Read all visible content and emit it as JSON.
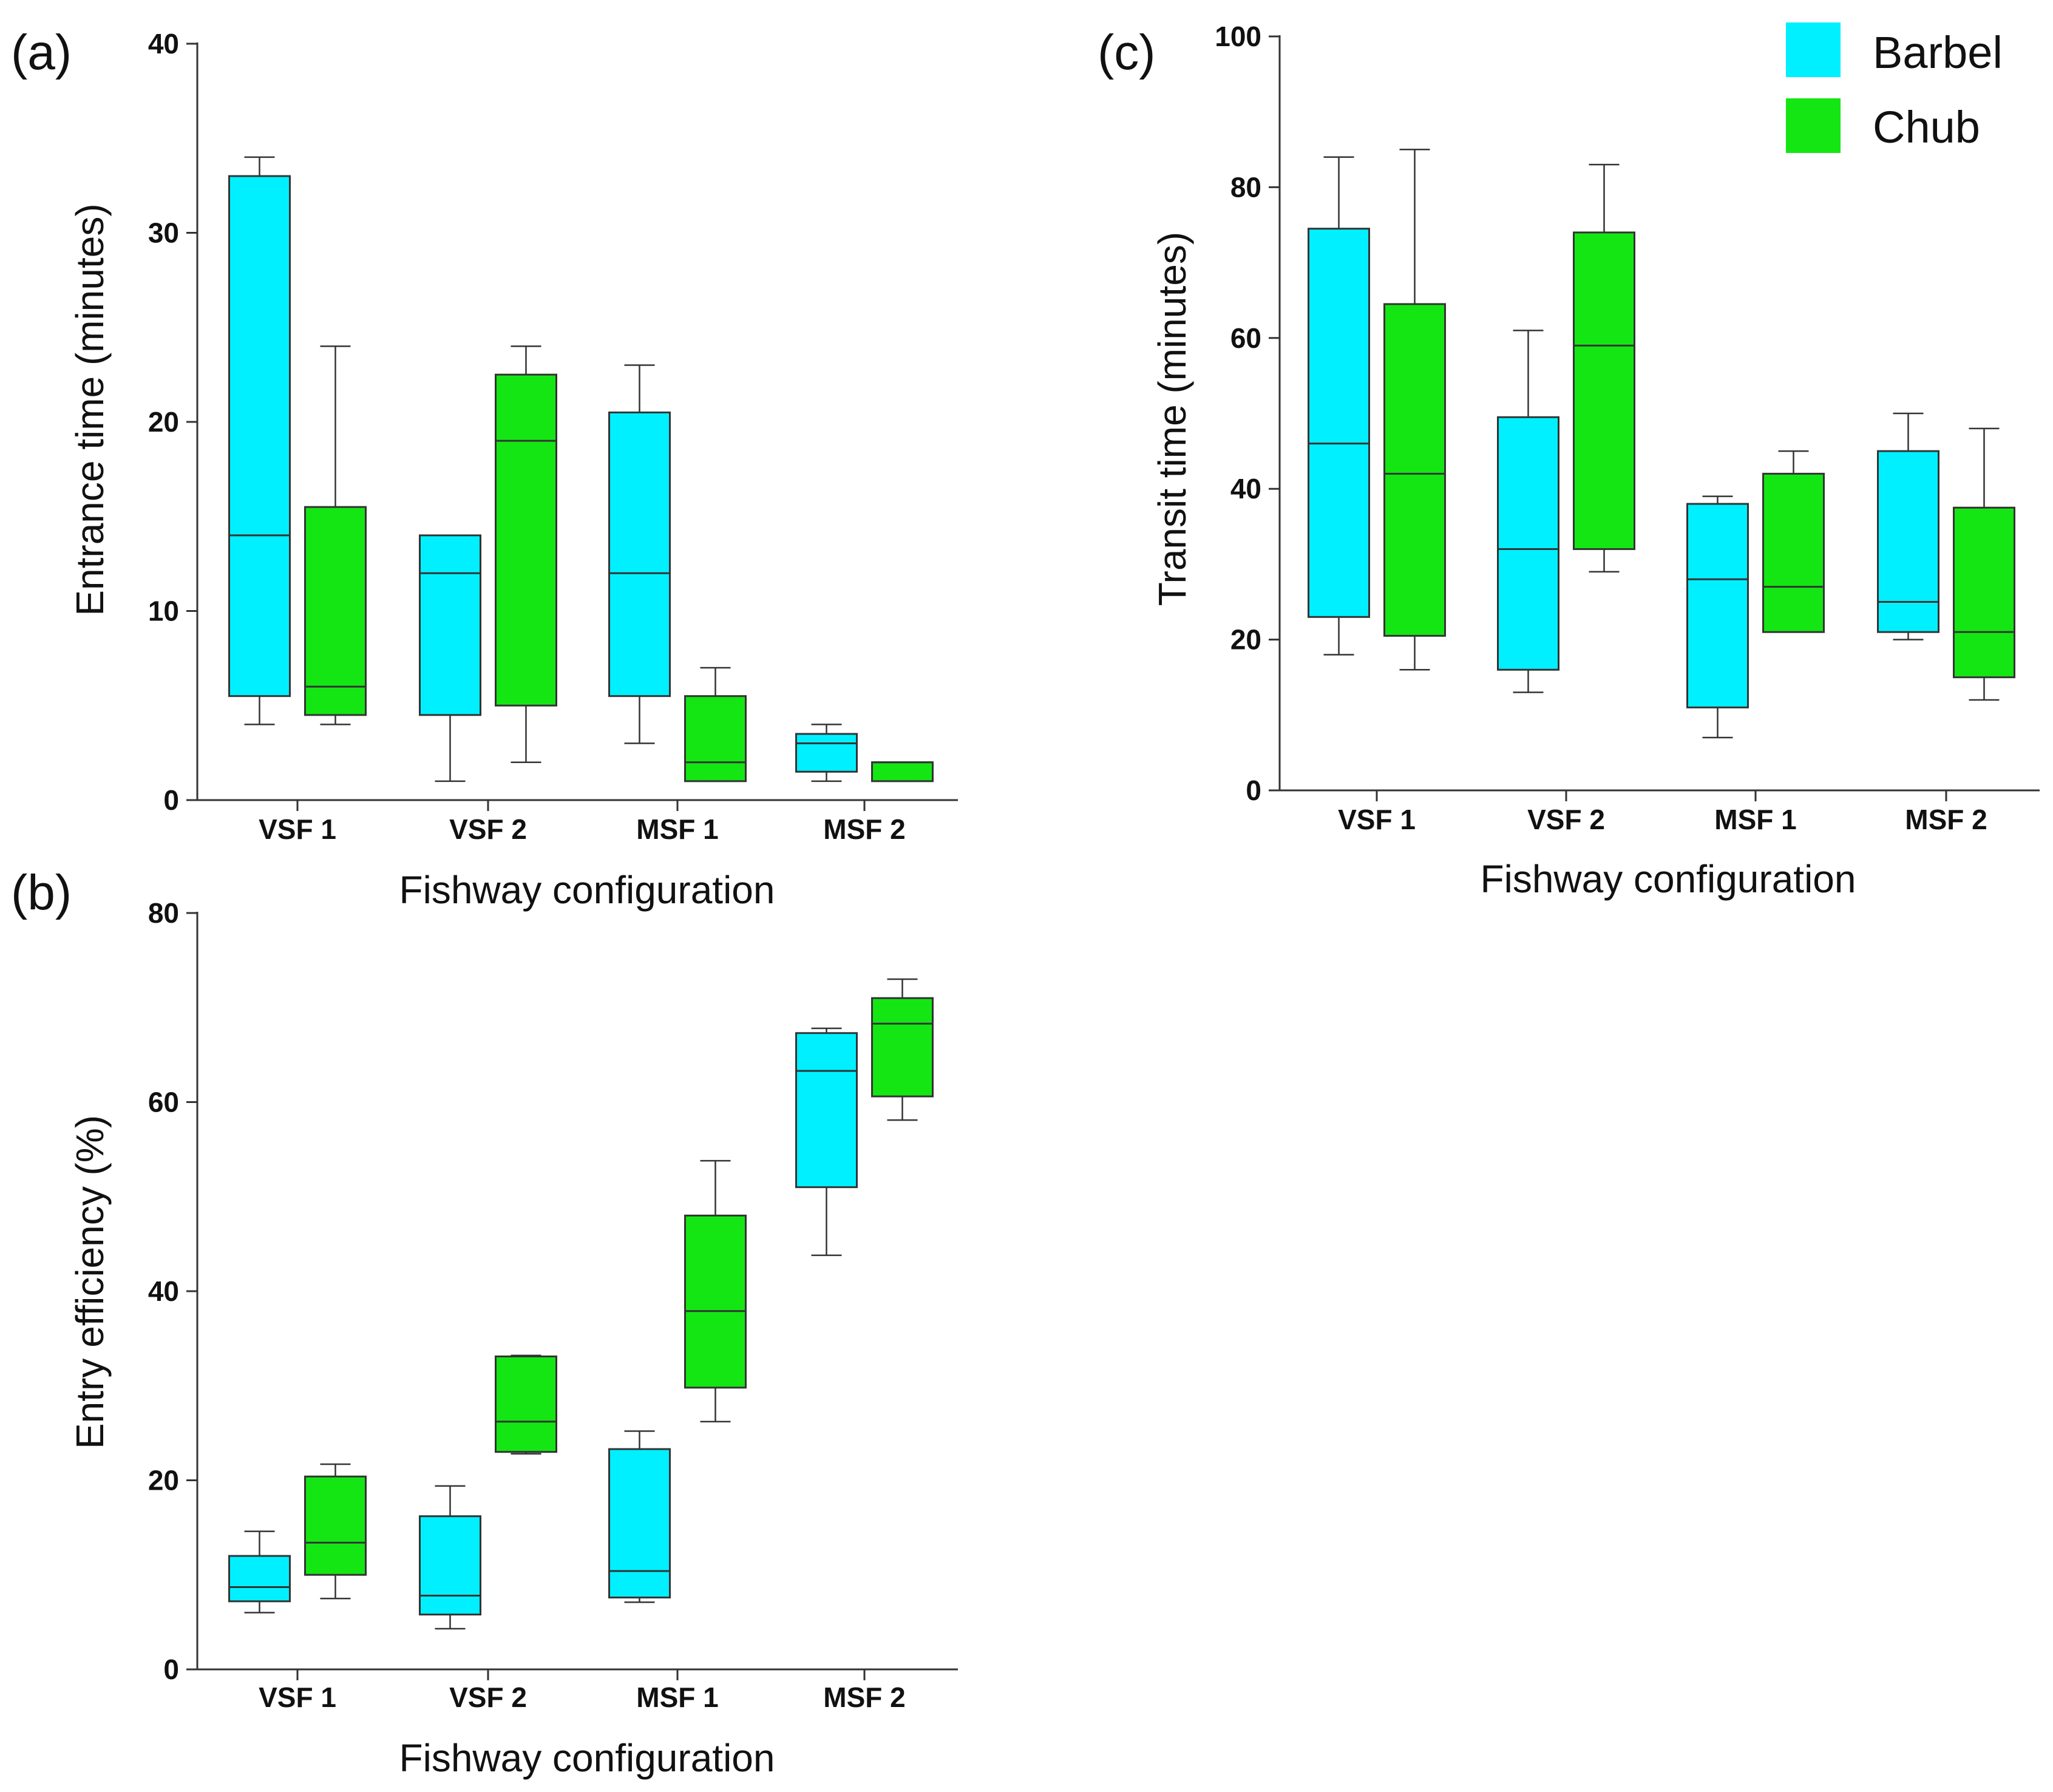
{
  "legend": {
    "items": [
      {
        "label": "Barbel",
        "color": "#00f0ff"
      },
      {
        "label": "Chub",
        "color": "#14e614"
      }
    ]
  },
  "chart_data": [
    {
      "panel": "(a)",
      "type": "boxplot",
      "title": "",
      "xlabel": "Fishway configuration",
      "ylabel": "Entrance time (minutes)",
      "ylim": [
        0,
        40
      ],
      "yticks": [
        0,
        10,
        20,
        30,
        40
      ],
      "categories": [
        "VSF 1",
        "VSF 2",
        "MSF 1",
        "MSF 2"
      ],
      "series": [
        {
          "name": "Barbel",
          "boxes": [
            {
              "min": 4,
              "q1": 5.5,
              "median": 14,
              "q3": 33,
              "max": 34
            },
            {
              "min": 1,
              "q1": 4.5,
              "median": 12,
              "q3": 14,
              "max": 14
            },
            {
              "min": 3,
              "q1": 5.5,
              "median": 12,
              "q3": 20.5,
              "max": 23
            },
            {
              "min": 1,
              "q1": 1.5,
              "median": 3,
              "q3": 3.5,
              "max": 4
            }
          ]
        },
        {
          "name": "Chub",
          "boxes": [
            {
              "min": 4,
              "q1": 4.5,
              "median": 6,
              "q3": 15.5,
              "max": 24
            },
            {
              "min": 2,
              "q1": 5,
              "median": 19,
              "q3": 22.5,
              "max": 24
            },
            {
              "min": 1,
              "q1": 1,
              "median": 2,
              "q3": 5.5,
              "max": 7
            },
            {
              "min": 1,
              "q1": 1,
              "median": 2,
              "q3": 2,
              "max": 2
            }
          ]
        }
      ]
    },
    {
      "panel": "(b)",
      "type": "boxplot",
      "title": "",
      "xlabel": "Fishway configuration",
      "ylabel": "Entry efficiency (%)",
      "ylim": [
        0,
        80
      ],
      "yticks": [
        0,
        20,
        40,
        60,
        80
      ],
      "categories": [
        "VSF 1",
        "VSF 2",
        "MSF 1",
        "MSF 2"
      ],
      "series": [
        {
          "name": "Barbel",
          "boxes": [
            {
              "min": 6,
              "q1": 7.2,
              "median": 8.7,
              "q3": 12,
              "max": 14.6
            },
            {
              "min": 4.3,
              "q1": 5.8,
              "median": 7.8,
              "q3": 16.2,
              "max": 19.4
            },
            {
              "min": 7.1,
              "q1": 7.6,
              "median": 10.4,
              "q3": 23.3,
              "max": 25.2
            },
            {
              "min": 43.8,
              "q1": 51,
              "median": 63.3,
              "q3": 67.3,
              "max": 67.8
            }
          ]
        },
        {
          "name": "Chub",
          "boxes": [
            {
              "min": 7.5,
              "q1": 10,
              "median": 13.4,
              "q3": 20.4,
              "max": 21.7
            },
            {
              "min": 22.8,
              "q1": 23,
              "median": 26.2,
              "q3": 33.1,
              "max": 33.2
            },
            {
              "min": 26.2,
              "q1": 29.8,
              "median": 37.9,
              "q3": 48,
              "max": 53.8
            },
            {
              "min": 58.1,
              "q1": 60.6,
              "median": 68.3,
              "q3": 71,
              "max": 73
            }
          ]
        }
      ]
    },
    {
      "panel": "(c)",
      "type": "boxplot",
      "title": "",
      "xlabel": "Fishway configuration",
      "ylabel": "Transit time  (minutes)",
      "ylim": [
        0,
        100
      ],
      "yticks": [
        0,
        20,
        40,
        60,
        80,
        100
      ],
      "categories": [
        "VSF 1",
        "VSF 2",
        "MSF 1",
        "MSF 2"
      ],
      "series": [
        {
          "name": "Barbel",
          "boxes": [
            {
              "min": 18,
              "q1": 23,
              "median": 46,
              "q3": 74.5,
              "max": 84
            },
            {
              "min": 13,
              "q1": 16,
              "median": 32,
              "q3": 49.5,
              "max": 61
            },
            {
              "min": 7,
              "q1": 11,
              "median": 28,
              "q3": 38,
              "max": 39
            },
            {
              "min": 20,
              "q1": 21,
              "median": 25,
              "q3": 45,
              "max": 50
            }
          ]
        },
        {
          "name": "Chub",
          "boxes": [
            {
              "min": 16,
              "q1": 20.5,
              "median": 42,
              "q3": 64.5,
              "max": 85
            },
            {
              "min": 29,
              "q1": 32,
              "median": 59,
              "q3": 74,
              "max": 83
            },
            {
              "min": 21,
              "q1": 21,
              "median": 27,
              "q3": 42,
              "max": 45
            },
            {
              "min": 12,
              "q1": 15,
              "median": 21,
              "q3": 37.5,
              "max": 48
            }
          ]
        }
      ]
    }
  ]
}
